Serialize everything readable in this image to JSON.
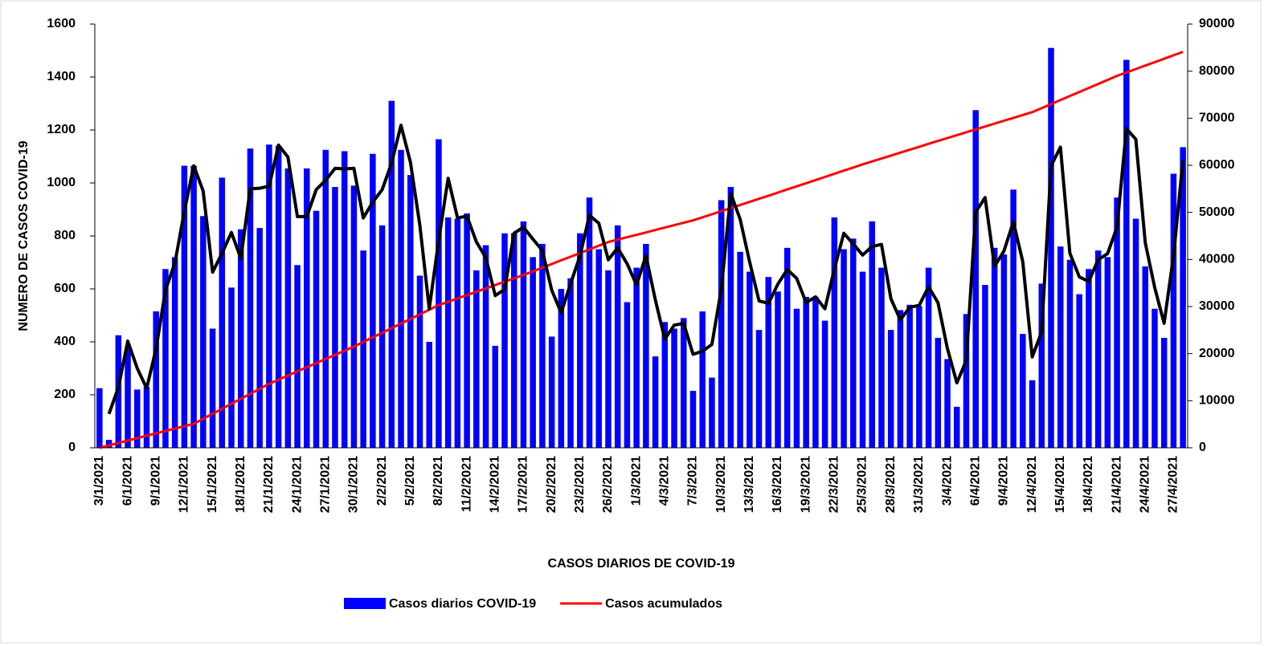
{
  "chart_data": {
    "type": "bar",
    "xlabel": "CASOS DIARIOS DE COVID-19",
    "ylabel": "NUMERO DE CASOS COVID-19",
    "categories": [
      "3/1/2021",
      null,
      null,
      "6/1/2021",
      null,
      null,
      "9/1/2021",
      null,
      null,
      "12/1/2021",
      null,
      null,
      "15/1/2021",
      null,
      null,
      "18/1/2021",
      null,
      null,
      "21/1/2021",
      null,
      null,
      "24/1/2021",
      null,
      null,
      "27/1/2021",
      null,
      null,
      "30/1/2021",
      null,
      null,
      "2/2/2021",
      null,
      null,
      "5/2/2021",
      null,
      null,
      "8/2/2021",
      null,
      null,
      "11/2/2021",
      null,
      null,
      "14/2/2021",
      null,
      null,
      "17/2/2021",
      null,
      null,
      "20/2/2021",
      null,
      null,
      "23/2/2021",
      null,
      null,
      "26/2/2021",
      null,
      null,
      "1/3/2021",
      null,
      null,
      "4/3/2021",
      null,
      null,
      "7/3/2021",
      null,
      null,
      "10/3/2021",
      null,
      null,
      "13/3/2021",
      null,
      null,
      "16/3/2021",
      null,
      null,
      "19/3/2021",
      null,
      null,
      "22/3/2021",
      null,
      null,
      "25/3/2021",
      null,
      null,
      "28/3/2021",
      null,
      null,
      "31/3/2021",
      null,
      null,
      "3/4/2021",
      null,
      null,
      "6/4/2021",
      null,
      null,
      "9/4/2021",
      null,
      null,
      "12/4/2021",
      null,
      null,
      "15/4/2021",
      null,
      null,
      "18/4/2021",
      null,
      null,
      "21/4/2021",
      null,
      null,
      "24/4/2021",
      null,
      null,
      "27/4/2021",
      null
    ],
    "series": [
      {
        "name": "Casos diarios COVID-19",
        "type": "bar",
        "color": "#0000ff",
        "values": [
          225,
          30,
          425,
          380,
          220,
          230,
          515,
          675,
          720,
          1065,
          1065,
          875,
          450,
          1020,
          605,
          825,
          1130,
          830,
          1145,
          1140,
          1055,
          690,
          1055,
          895,
          1125,
          985,
          1120,
          990,
          745,
          1110,
          840,
          1310,
          1125,
          1030,
          650,
          400,
          1165,
          870,
          865,
          885,
          670,
          765,
          385,
          810,
          810,
          855,
          720,
          770,
          420,
          600,
          640,
          810,
          945,
          750,
          670,
          840,
          550,
          680,
          770,
          345,
          475,
          450,
          490,
          215,
          515,
          265,
          935,
          985,
          740,
          665,
          445,
          645,
          590,
          755,
          525,
          570,
          570,
          480,
          870,
          750,
          790,
          665,
          855,
          680,
          445,
          520,
          540,
          535,
          680,
          415,
          335,
          155,
          505,
          1275,
          615,
          755,
          730,
          975,
          430,
          255,
          620,
          1510,
          760,
          710,
          580,
          675,
          745,
          720,
          945,
          1465,
          865,
          685,
          525,
          415,
          1035,
          1135
        ]
      },
      {
        "name": "Casos acumulados",
        "type": "line",
        "axis": "y2",
        "color": "#ff0000",
        "values": [
          0,
          510,
          1020,
          1530,
          2040,
          2550,
          3060,
          3570,
          4080,
          4590,
          5100,
          6160,
          7230,
          8290,
          9350,
          10410,
          11480,
          12540,
          13600,
          14480,
          15360,
          16230,
          17110,
          17990,
          18870,
          19740,
          20620,
          21500,
          22480,
          23460,
          24430,
          25410,
          26390,
          27370,
          28340,
          29320,
          30300,
          31010,
          31720,
          32430,
          33140,
          33860,
          34570,
          35280,
          35990,
          36700,
          37480,
          38260,
          39030,
          39810,
          40590,
          41370,
          42140,
          42920,
          43700,
          44210,
          44720,
          45230,
          45740,
          46260,
          46770,
          47280,
          47790,
          48300,
          48960,
          49610,
          50270,
          50920,
          51580,
          52230,
          52890,
          53540,
          54200,
          54870,
          55530,
          56200,
          56870,
          57530,
          58200,
          58870,
          59530,
          60200,
          60820,
          61440,
          62070,
          62690,
          63310,
          63930,
          64560,
          65180,
          65800,
          66410,
          67020,
          67630,
          68240,
          68860,
          69470,
          70080,
          70690,
          71300,
          72160,
          73010,
          73870,
          74720,
          75580,
          76430,
          77290,
          78140,
          79000,
          79730,
          80460,
          81190,
          81910,
          82640,
          83370,
          84100
        ]
      },
      {
        "type": "line",
        "color": "#000000",
        "values": [
          null,
          128,
          228,
          403,
          300,
          225,
          373,
          595,
          698,
          893,
          1065,
          970,
          663,
          735,
          813,
          715,
          978,
          980,
          988,
          1143,
          1098,
          873,
          873,
          975,
          1010,
          1055,
          1053,
          1055,
          868,
          928,
          975,
          1075,
          1218,
          1078,
          840,
          525,
          783,
          1018,
          868,
          875,
          778,
          718,
          575,
          598,
          810,
          833,
          788,
          745,
          595,
          510,
          620,
          725,
          878,
          848,
          710,
          755,
          695,
          615,
          725,
          558,
          410,
          463,
          470,
          353,
          365,
          390,
          600,
          960,
          863,
          703,
          555,
          545,
          618,
          673,
          640,
          548,
          570,
          525,
          675,
          810,
          770,
          728,
          760,
          768,
          563,
          483,
          530,
          538,
          608,
          548,
          375,
          245,
          330,
          890,
          945,
          685,
          743,
          853,
          703,
          343,
          438,
          1065,
          1135,
          735,
          645,
          628,
          710,
          733,
          833,
          1205,
          1165,
          775,
          605,
          470,
          725,
          1085
        ]
      }
    ],
    "ylim": [
      0,
      1600
    ],
    "yticks": [
      0,
      200,
      400,
      600,
      800,
      1000,
      1200,
      1400,
      1600
    ],
    "y2lim": [
      0,
      90000
    ],
    "y2ticks": [
      0,
      10000,
      20000,
      30000,
      40000,
      50000,
      60000,
      70000,
      80000,
      90000
    ]
  }
}
